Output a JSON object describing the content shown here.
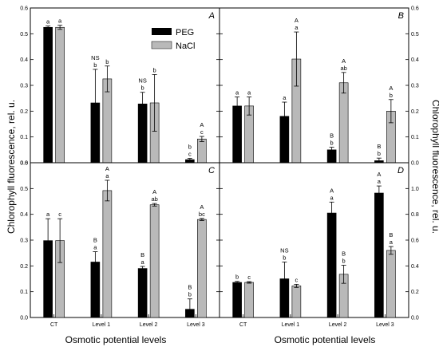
{
  "figure": {
    "ylabel": "Chlorophyll fluorescence, rel. u.",
    "xlabel": "Osmotic potential levels",
    "legend": {
      "placement": "top-right of panel A",
      "entries": [
        {
          "name": "PEG",
          "color": "#000000"
        },
        {
          "name": "NaCl",
          "color": "#b9b9b9"
        }
      ]
    },
    "colors": {
      "peg": "#000000",
      "nacl": "#b9b9b9"
    }
  },
  "chart_data": [
    {
      "panel": "A",
      "type": "bar",
      "categories": [
        "CT",
        "Level 1",
        "Level 2",
        "Level 3"
      ],
      "ylim": [
        0,
        0.6
      ],
      "yticks": [
        0.0,
        0.1,
        0.2,
        0.3,
        0.4,
        0.5,
        0.6
      ],
      "series": [
        {
          "name": "PEG",
          "values": [
            0.525,
            0.232,
            0.228,
            0.012
          ],
          "errors": [
            0.005,
            0.13,
            0.045,
            0.005
          ],
          "labels": [
            [
              "a"
            ],
            [
              "NS",
              "b"
            ],
            [
              "NS",
              "b"
            ],
            [
              "b",
              "c"
            ]
          ]
        },
        {
          "name": "NaCl",
          "values": [
            0.525,
            0.325,
            0.232,
            0.092
          ],
          "errors": [
            0.008,
            0.05,
            0.11,
            0.01
          ],
          "labels": [
            [
              "a"
            ],
            [
              "b"
            ],
            [
              "b"
            ],
            [
              "A",
              "c"
            ]
          ]
        }
      ]
    },
    {
      "panel": "B",
      "type": "bar",
      "categories": [
        "CT",
        "Level 1",
        "Level 2",
        "Level 3"
      ],
      "ylim": [
        0,
        0.6
      ],
      "yticks": [
        0.0,
        0.1,
        0.2,
        0.3,
        0.4,
        0.5,
        0.6
      ],
      "series": [
        {
          "name": "PEG",
          "values": [
            0.22,
            0.18,
            0.05,
            0.008
          ],
          "errors": [
            0.035,
            0.055,
            0.01,
            0.01
          ],
          "labels": [
            [
              "a"
            ],
            [
              "a"
            ],
            [
              "B",
              "b"
            ],
            [
              "B",
              "b"
            ]
          ]
        },
        {
          "name": "NaCl",
          "values": [
            0.22,
            0.402,
            0.31,
            0.2
          ],
          "errors": [
            0.035,
            0.105,
            0.04,
            0.045
          ],
          "labels": [
            [
              "a"
            ],
            [
              "A",
              "a"
            ],
            [
              "A",
              "ab"
            ],
            [
              "A",
              "b"
            ]
          ]
        }
      ]
    },
    {
      "panel": "C",
      "type": "bar",
      "categories": [
        "CT",
        "Level 1",
        "Level 2",
        "Level 3"
      ],
      "ylim": [
        0,
        0.6
      ],
      "yticks": [
        0.0,
        0.1,
        0.2,
        0.3,
        0.4,
        0.5,
        0.6
      ],
      "series": [
        {
          "name": "PEG",
          "values": [
            0.298,
            0.215,
            0.19,
            0.032
          ],
          "errors": [
            0.085,
            0.04,
            0.008,
            0.04
          ],
          "labels": [
            [
              "a"
            ],
            [
              "B",
              "a"
            ],
            [
              "B",
              "a"
            ],
            [
              "B",
              "b"
            ]
          ]
        },
        {
          "name": "NaCl",
          "values": [
            0.298,
            0.492,
            0.437,
            0.38
          ],
          "errors": [
            0.085,
            0.04,
            0.005,
            0.004
          ],
          "labels": [
            [
              "c"
            ],
            [
              "A",
              "a"
            ],
            [
              "A",
              "ab"
            ],
            [
              "A",
              "bc"
            ]
          ]
        }
      ]
    },
    {
      "panel": "D",
      "type": "bar",
      "categories": [
        "CT",
        "Level 1",
        "Level 2",
        "Level 3"
      ],
      "ylim": [
        0,
        1.2
      ],
      "yticks": [
        0.0,
        0.2,
        0.4,
        0.6,
        0.8,
        1.0
      ],
      "series": [
        {
          "name": "PEG",
          "values": [
            0.272,
            0.3,
            0.81,
            0.965
          ],
          "errors": [
            0.008,
            0.13,
            0.085,
            0.055
          ],
          "labels": [
            [
              "b"
            ],
            [
              "NS",
              "b"
            ],
            [
              "A",
              "a"
            ],
            [
              "A",
              "a"
            ]
          ]
        },
        {
          "name": "NaCl",
          "values": [
            0.272,
            0.245,
            0.335,
            0.52
          ],
          "errors": [
            0.006,
            0.012,
            0.07,
            0.03
          ],
          "labels": [
            [
              "c"
            ],
            [
              "c"
            ],
            [
              "B",
              "b"
            ],
            [
              "B",
              "a"
            ]
          ]
        }
      ]
    }
  ]
}
